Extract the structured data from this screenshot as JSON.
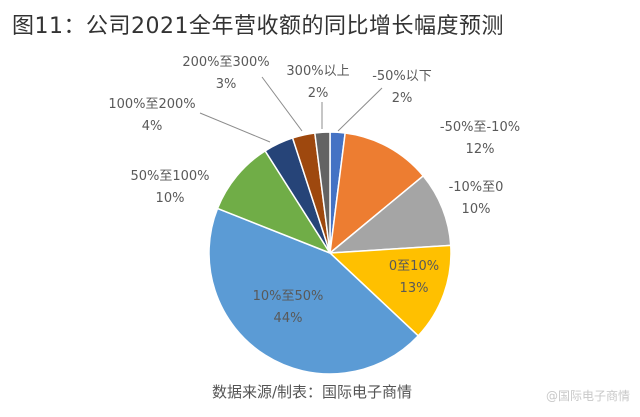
{
  "title": "图11：公司2021全年营收额的同比增长幅度预测",
  "source": "数据来源/制表：国际电子商情",
  "watermark": "@国际电子商情",
  "chart_data": {
    "type": "pie",
    "title": "图11：公司2021全年营收额的同比增长幅度预测",
    "start": "12 o'clock",
    "direction": "clockwise",
    "categories": [
      "-50%以下",
      "-50%至-10%",
      "-10%至0",
      "0至10%",
      "10%至50%",
      "50%至100%",
      "100%至200%",
      "200%至300%",
      "300%以上"
    ],
    "values": [
      2,
      12,
      10,
      13,
      44,
      10,
      4,
      3,
      2
    ],
    "value_labels": [
      "2%",
      "12%",
      "10%",
      "13%",
      "44%",
      "10%",
      "4%",
      "3%",
      "2%"
    ],
    "colors": [
      "#4472C4",
      "#ED7D31",
      "#A5A5A5",
      "#FFC000",
      "#5B9BD5",
      "#70AD47",
      "#264478",
      "#9E480E",
      "#636363"
    ]
  }
}
